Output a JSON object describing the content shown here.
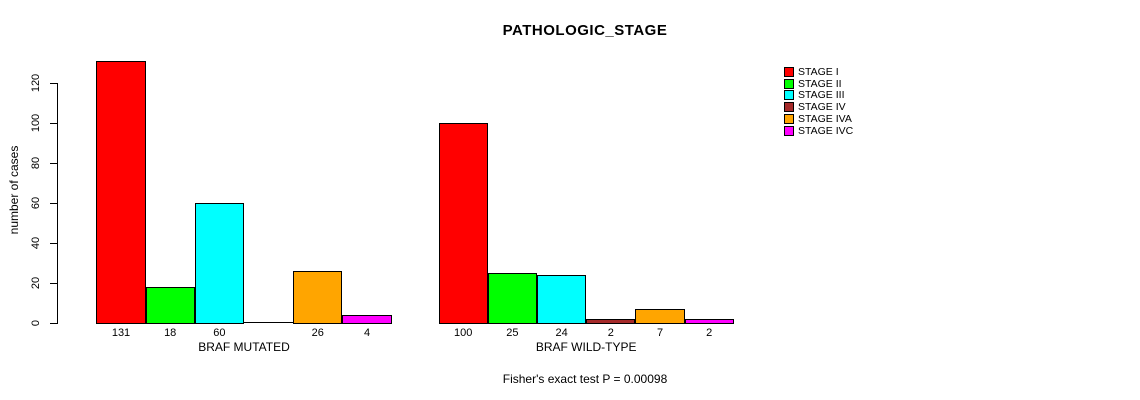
{
  "chart_data": {
    "type": "bar",
    "title": "PATHOLOGIC_STAGE",
    "ylabel": "number of cases",
    "xlabel": "",
    "annotation": "Fisher's exact test P = 0.00098",
    "yticks": [
      0,
      20,
      40,
      60,
      80,
      100,
      120
    ],
    "ylim": [
      0,
      131
    ],
    "grid": false,
    "legend_position": "right",
    "categories": [
      "STAGE I",
      "STAGE II",
      "STAGE III",
      "STAGE IV",
      "STAGE IVA",
      "STAGE IVC"
    ],
    "series_colors": [
      "#FF0000",
      "#00FF00",
      "#00FFFF",
      "#A52A2A",
      "#FFA500",
      "#FF00FF"
    ],
    "groups": [
      {
        "label": "BRAF MUTATED",
        "values": [
          131,
          18,
          60,
          0,
          26,
          4
        ]
      },
      {
        "label": "BRAF WILD-TYPE",
        "values": [
          100,
          25,
          24,
          2,
          7,
          2
        ]
      }
    ],
    "legend": [
      {
        "label": "STAGE I",
        "color": "#FF0000"
      },
      {
        "label": "STAGE II",
        "color": "#00FF00"
      },
      {
        "label": "STAGE III",
        "color": "#00FFFF"
      },
      {
        "label": "STAGE IV",
        "color": "#A52A2A"
      },
      {
        "label": "STAGE IVA",
        "color": "#FFA500"
      },
      {
        "label": "STAGE IVC",
        "color": "#FF00FF"
      }
    ]
  }
}
